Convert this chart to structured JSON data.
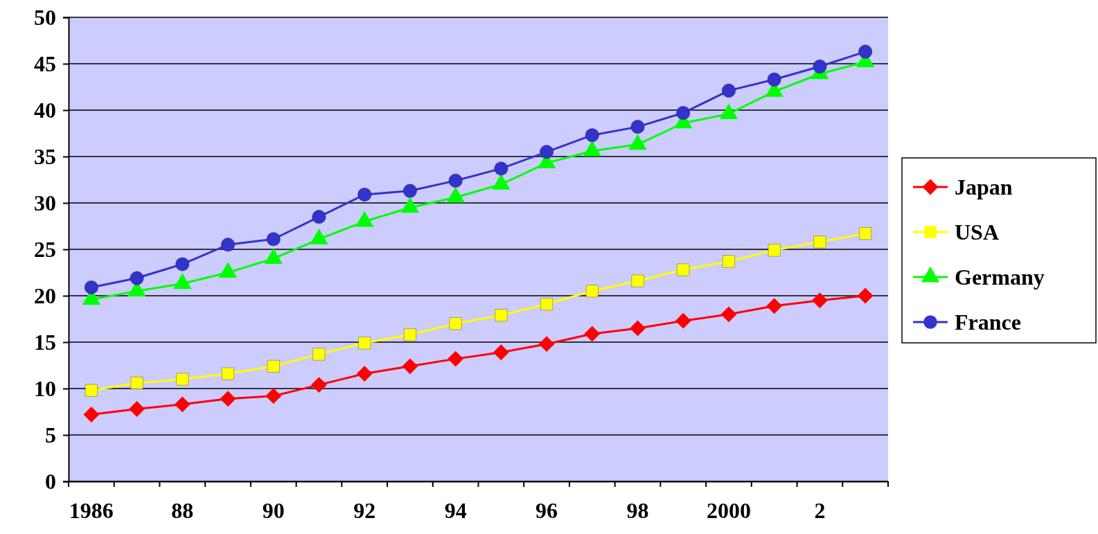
{
  "chart_data": {
    "type": "line",
    "categories": [
      "1986",
      null,
      "88",
      null,
      "90",
      null,
      "92",
      null,
      "94",
      null,
      "96",
      null,
      "98",
      null,
      "2000",
      null,
      "2",
      null
    ],
    "ylim": [
      0,
      50
    ],
    "yticks": [
      0,
      5,
      10,
      15,
      20,
      25,
      30,
      35,
      40,
      45,
      50
    ],
    "grid": "y",
    "legend": "right",
    "series": [
      {
        "name": "Japan",
        "color": "#ff0000",
        "marker": "diamond",
        "values": [
          7.2,
          7.8,
          8.3,
          8.9,
          9.2,
          10.4,
          11.6,
          12.4,
          13.2,
          13.9,
          14.8,
          15.9,
          16.5,
          17.3,
          18.0,
          18.9,
          19.5,
          20.0
        ]
      },
      {
        "name": "USA",
        "color": "#ffff00",
        "marker": "square",
        "values": [
          9.8,
          10.6,
          11.0,
          11.6,
          12.4,
          13.7,
          14.9,
          15.8,
          17.0,
          17.9,
          19.1,
          20.5,
          21.6,
          22.8,
          23.7,
          24.9,
          25.8,
          26.7
        ]
      },
      {
        "name": "Germany",
        "color": "#00ff00",
        "marker": "triangle",
        "values": [
          19.6,
          20.5,
          21.3,
          22.5,
          24.0,
          26.1,
          28.0,
          29.5,
          30.6,
          32.0,
          34.3,
          35.6,
          36.3,
          38.6,
          39.6,
          42.0,
          43.9,
          45.2
        ]
      },
      {
        "name": "France",
        "color": "#3333cc",
        "marker": "circle",
        "values": [
          20.9,
          21.9,
          23.4,
          25.5,
          26.1,
          28.5,
          30.9,
          31.3,
          32.4,
          33.7,
          35.5,
          37.3,
          38.2,
          39.7,
          42.1,
          43.3,
          44.7,
          46.3
        ]
      }
    ]
  }
}
